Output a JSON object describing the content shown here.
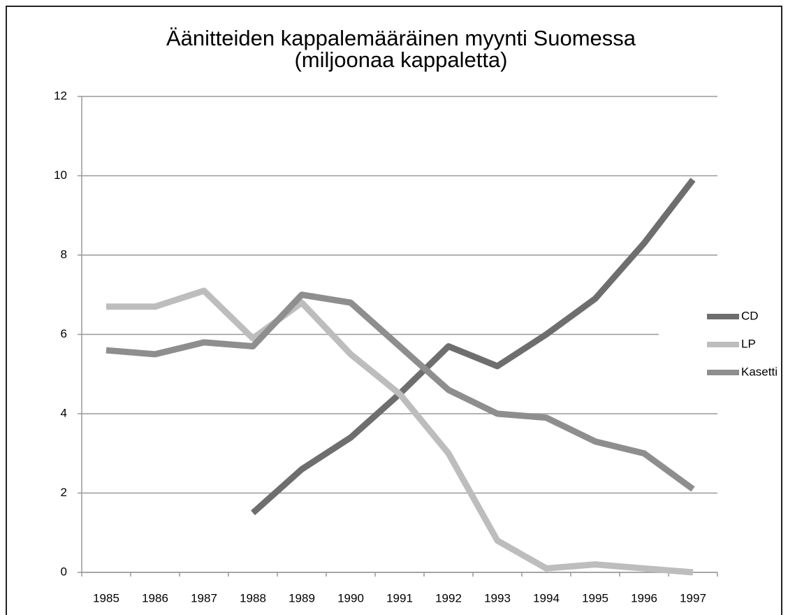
{
  "chart_data": {
    "type": "line",
    "title": "Äänitteiden kappalemääräinen myynti Suomessa",
    "subtitle": "(miljoonaa kappaletta)",
    "categories": [
      "1985",
      "1986",
      "1987",
      "1988",
      "1989",
      "1990",
      "1991",
      "1992",
      "1993",
      "1994",
      "1995",
      "1996",
      "1997"
    ],
    "series": [
      {
        "name": "CD",
        "color": "#6e6e6e",
        "values": [
          null,
          null,
          null,
          1.5,
          2.6,
          3.4,
          4.5,
          5.7,
          5.2,
          6.0,
          6.9,
          8.3,
          9.9
        ]
      },
      {
        "name": "LP",
        "color": "#bdbdbd",
        "values": [
          6.7,
          6.7,
          7.1,
          5.9,
          6.8,
          5.5,
          4.5,
          3.0,
          0.8,
          0.1,
          0.2,
          0.1,
          0.0
        ]
      },
      {
        "name": "Kasetti",
        "color": "#8e8e8e",
        "values": [
          5.6,
          5.5,
          5.8,
          5.7,
          7.0,
          6.8,
          5.7,
          4.6,
          4.0,
          3.9,
          3.3,
          3.0,
          2.1
        ]
      }
    ],
    "ylim": [
      0,
      12
    ],
    "yticks": [
      0,
      2,
      4,
      6,
      8,
      10,
      12
    ],
    "grid": true,
    "legend": "right"
  }
}
